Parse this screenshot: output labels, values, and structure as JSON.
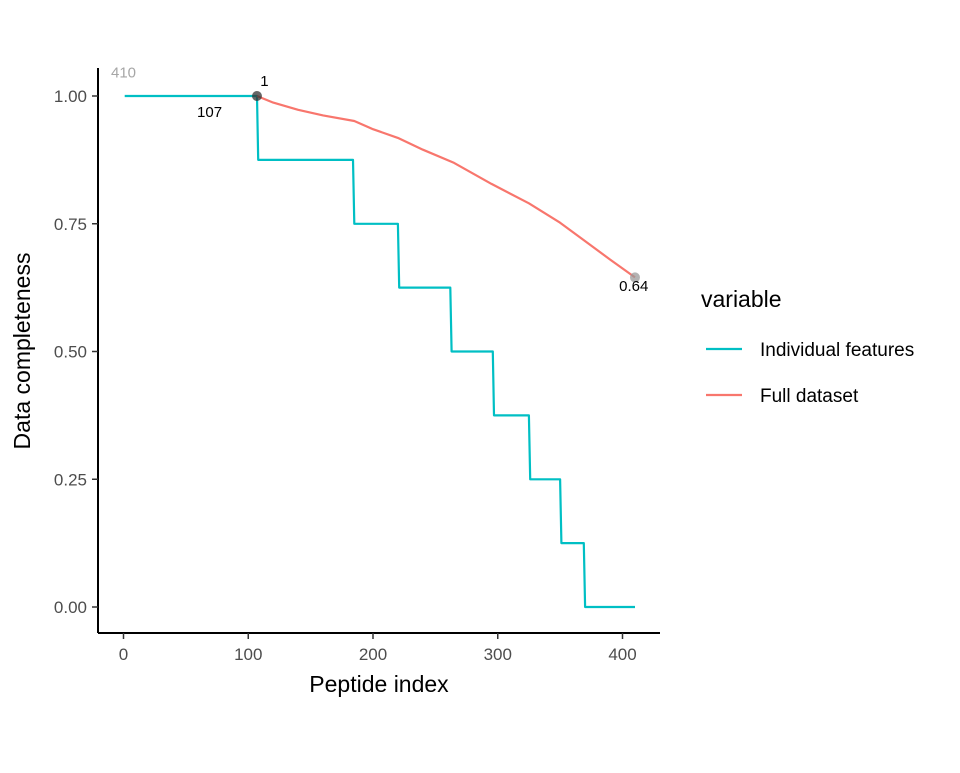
{
  "chart_data": {
    "type": "line",
    "xlabel": "Peptide index",
    "ylabel": "Data completeness",
    "xlim": [
      -20,
      430
    ],
    "ylim": [
      -0.05,
      1.05
    ],
    "x_ticks": [
      0,
      100,
      200,
      300,
      400
    ],
    "x_tick_labels": [
      "0",
      "100",
      "200",
      "300",
      "400"
    ],
    "y_ticks": [
      0,
      0.25,
      0.5,
      0.75,
      1.0
    ],
    "y_tick_labels": [
      "0.00",
      "0.25",
      "0.50",
      "0.75",
      "1.00"
    ],
    "grid": false,
    "legend": {
      "title": "variable",
      "placement": "right",
      "entries": [
        {
          "label": "Individual features",
          "color": "#00BFC4"
        },
        {
          "label": "Full dataset",
          "color": "#F8766D"
        }
      ]
    },
    "series": [
      {
        "name": "Individual features",
        "color": "#00BFC4",
        "step": true,
        "x": [
          1,
          107,
          108,
          184,
          185,
          220,
          221,
          262,
          263,
          296,
          297,
          325,
          326,
          350,
          351,
          369,
          370,
          410
        ],
        "y": [
          1.0,
          1.0,
          0.875,
          0.875,
          0.75,
          0.75,
          0.625,
          0.625,
          0.5,
          0.5,
          0.375,
          0.375,
          0.25,
          0.25,
          0.125,
          0.125,
          0.0,
          0.0
        ]
      },
      {
        "name": "Full dataset",
        "color": "#F8766D",
        "step": false,
        "x": [
          107,
          120,
          140,
          160,
          185,
          200,
          220,
          240,
          265,
          295,
          325,
          350,
          370,
          390,
          410
        ],
        "y": [
          1.0,
          0.987,
          0.973,
          0.962,
          0.951,
          0.935,
          0.918,
          0.895,
          0.869,
          0.828,
          0.79,
          0.752,
          0.716,
          0.68,
          0.645
        ]
      }
    ],
    "points": [
      {
        "x": 107,
        "y": 1.0,
        "color": "#333333"
      },
      {
        "x": 410,
        "y": 0.645,
        "color": "#9a9a9a"
      }
    ],
    "annotations": [
      {
        "text": "410",
        "x": 0,
        "y": 1.036,
        "faint": true
      },
      {
        "text": "1",
        "x": 113,
        "y": 1.02,
        "faint": false
      },
      {
        "text": "107",
        "x": 69,
        "y": 0.959,
        "faint": false
      },
      {
        "text": "0.64",
        "x": 409,
        "y": 0.618,
        "faint": false
      }
    ]
  }
}
